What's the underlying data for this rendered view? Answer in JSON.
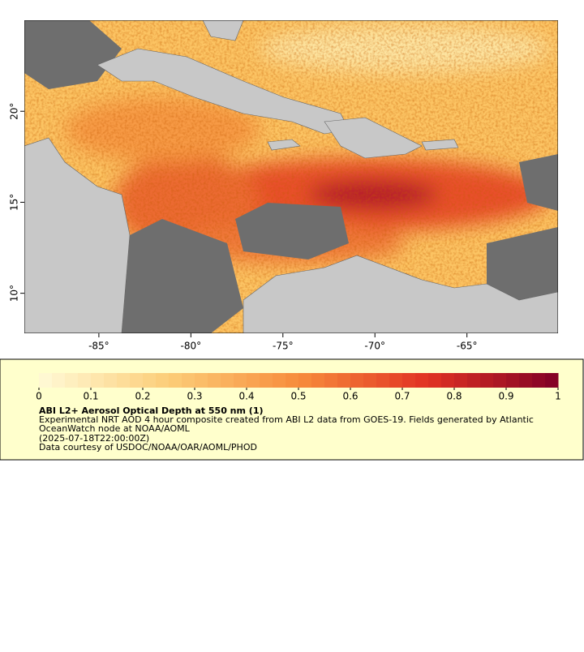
{
  "map": {
    "xlim": [
      -89.05,
      -60.05
    ],
    "ylim": [
      7.8,
      25.0
    ],
    "xticks": [
      {
        "value": -85,
        "label": "-85°"
      },
      {
        "value": -80,
        "label": "-80°"
      },
      {
        "value": -75,
        "label": "-75°"
      },
      {
        "value": -70,
        "label": "-70°"
      },
      {
        "value": -65,
        "label": "-65°"
      }
    ],
    "yticks": [
      {
        "value": 20,
        "label": "20°"
      },
      {
        "value": 15,
        "label": "15°"
      },
      {
        "value": 10,
        "label": "10°"
      }
    ]
  },
  "legend": {
    "colorbar": {
      "range": [
        0,
        1
      ],
      "ticks": [
        0,
        0.1,
        0.2,
        0.3,
        0.4,
        0.5,
        0.6,
        0.7,
        0.8,
        0.9,
        1
      ]
    },
    "title": "ABI L2+ Aerosol Optical Depth at 550 nm (1)",
    "lines": [
      "Experimental NRT AOD 4 hour composite created from ABI L2 data from GOES-19. Fields generated by Atlantic",
      "OceanWatch node at NOAA/AOML",
      "(2025-07-18T22:00:00Z)",
      "Data courtesy of USDOC/NOAA/OAR/AOML/PHOD"
    ]
  }
}
